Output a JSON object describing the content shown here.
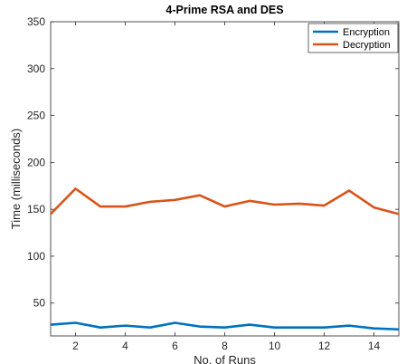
{
  "chart_data": {
    "type": "line",
    "title": "4-Prime RSA and DES",
    "xlabel": "No. of Runs",
    "ylabel": "Time (milliseconds)",
    "xlim": [
      1,
      15
    ],
    "ylim": [
      15,
      350
    ],
    "xticks": [
      2,
      4,
      6,
      8,
      10,
      12,
      14
    ],
    "yticks": [
      50,
      100,
      150,
      200,
      250,
      300,
      350
    ],
    "x": [
      1,
      2,
      3,
      4,
      5,
      6,
      7,
      8,
      9,
      10,
      11,
      12,
      13,
      14,
      15
    ],
    "series": [
      {
        "name": "Encryption",
        "color": "#0072BD",
        "values": [
          27,
          29,
          24,
          26,
          24,
          29,
          25,
          24,
          27,
          24,
          24,
          24,
          26,
          23,
          22
        ]
      },
      {
        "name": "Decryption",
        "color": "#D95319",
        "values": [
          145,
          172,
          153,
          153,
          158,
          160,
          165,
          153,
          159,
          155,
          156,
          154,
          170,
          152,
          145
        ]
      }
    ],
    "grid": false,
    "legend_position": "top-right",
    "box": true
  }
}
